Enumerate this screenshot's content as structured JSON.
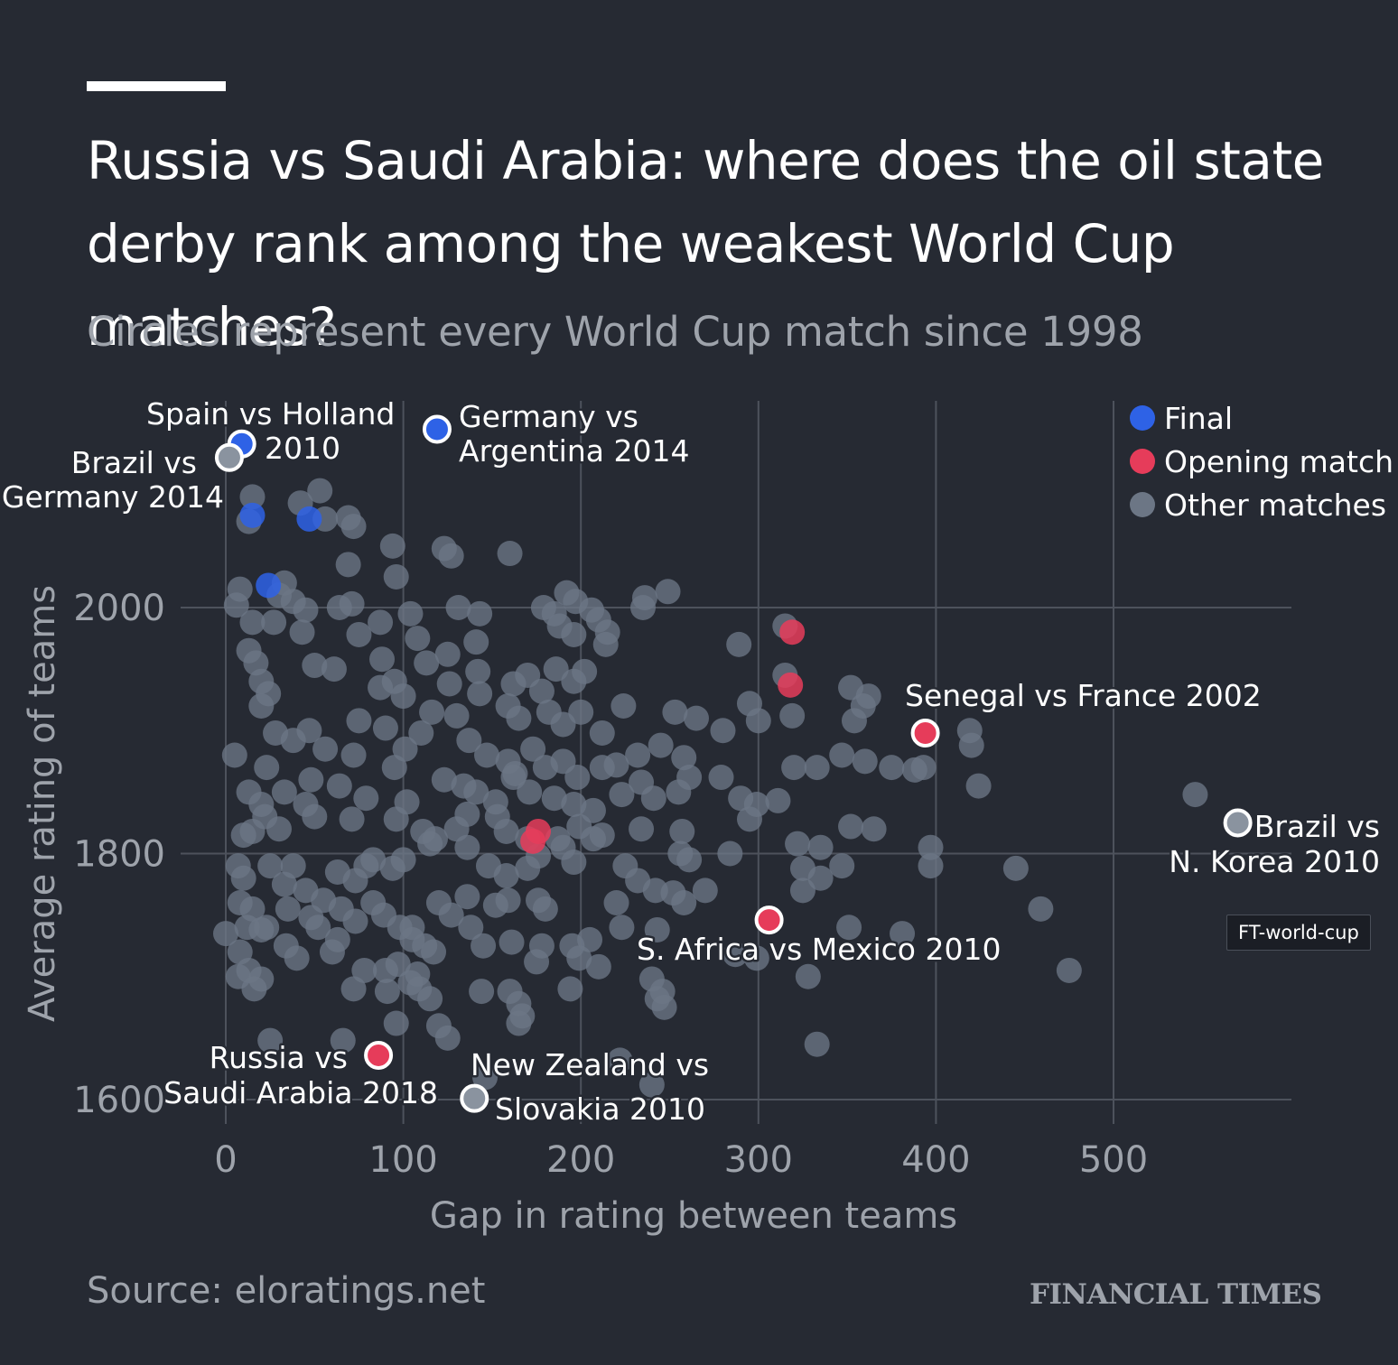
{
  "title": "Russia vs Saudi Arabia: where does the oil state derby rank among the weakest World Cup matches?",
  "subtitle": "Circles represent every World Cup match since 1998",
  "source": "Source: eloratings.net",
  "brand": "FINANCIAL TIMES",
  "tooltip": "FT-world-cup",
  "colors": {
    "background": "#262a33",
    "final": "#2e62e6",
    "opening": "#e63c5a",
    "other": "#6c7685",
    "grid": "#4d525c",
    "muted_text": "#9ea3ab"
  },
  "chart_data": {
    "type": "scatter",
    "xlabel": "Gap in rating between teams",
    "ylabel": "Average rating of teams",
    "xlim": [
      0,
      600
    ],
    "ylim": [
      1590,
      2170
    ],
    "x_ticks": [
      0,
      100,
      200,
      300,
      400,
      500
    ],
    "y_ticks": [
      1600,
      1800,
      2000
    ],
    "x_tick_labels": [
      "0",
      "100",
      "200",
      "300",
      "400",
      "500"
    ],
    "y_tick_labels": [
      "1600",
      "1800",
      "2000"
    ],
    "legend": {
      "placement": "top-right",
      "entries": [
        {
          "label": "Final",
          "category": "final"
        },
        {
          "label": "Opening match",
          "category": "opening"
        },
        {
          "label": "Other matches",
          "category": "other"
        }
      ]
    },
    "highlighted": [
      {
        "name": "Spain vs Holland 2010",
        "label_lines": [
          "Spain vs Holland",
          "2010"
        ],
        "category": "final",
        "x": 9,
        "y": 2133
      },
      {
        "name": "Brazil vs Germany 2014",
        "label_lines": [
          "Brazil vs",
          "Germany 2014"
        ],
        "category": "other",
        "x": 2,
        "y": 2122
      },
      {
        "name": "Germany vs Argentina 2014",
        "label_lines": [
          "Germany vs",
          "Argentina 2014"
        ],
        "category": "final",
        "x": 119,
        "y": 2145
      },
      {
        "name": "Senegal vs France 2002",
        "label_lines": [
          "Senegal vs France 2002"
        ],
        "category": "opening",
        "x": 394,
        "y": 1898
      },
      {
        "name": "Brazil vs N. Korea 2010",
        "label_lines": [
          "Brazil vs",
          "N. Korea 2010"
        ],
        "category": "other",
        "x": 570,
        "y": 1825
      },
      {
        "name": "S. Africa vs Mexico 2010",
        "label_lines": [
          "S. Africa vs Mexico 2010"
        ],
        "category": "opening",
        "x": 306,
        "y": 1746
      },
      {
        "name": "Russia vs Saudi Arabia 2018",
        "label_lines": [
          "Russia vs",
          "Saudi Arabia 2018"
        ],
        "category": "opening",
        "x": 86,
        "y": 1636
      },
      {
        "name": "New Zealand vs Slovakia 2010",
        "label_lines": [
          "New Zealand vs",
          "Slovakia 2010"
        ],
        "category": "other",
        "x": 140,
        "y": 1601
      }
    ],
    "finals": [
      [
        15,
        2075
      ],
      [
        47,
        2072
      ],
      [
        24,
        2018
      ]
    ],
    "openings": [
      [
        319,
        1980
      ],
      [
        318,
        1937
      ],
      [
        176,
        1818
      ],
      [
        173,
        1810
      ]
    ],
    "others": [
      [
        13,
        2070
      ],
      [
        42,
        2085
      ],
      [
        53,
        2095
      ],
      [
        56,
        2072
      ],
      [
        69,
        2073
      ],
      [
        72,
        2066
      ],
      [
        15,
        2090
      ],
      [
        94,
        2050
      ],
      [
        96,
        2025
      ],
      [
        123,
        2048
      ],
      [
        127,
        2042
      ],
      [
        160,
        2044
      ],
      [
        69,
        2035
      ],
      [
        33,
        2020
      ],
      [
        8,
        2015
      ],
      [
        6,
        2002
      ],
      [
        30,
        2010
      ],
      [
        38,
        2005
      ],
      [
        45,
        1998
      ],
      [
        64,
        2000
      ],
      [
        71,
        2003
      ],
      [
        15,
        1988
      ],
      [
        27,
        1988
      ],
      [
        43,
        1980
      ],
      [
        87,
        1988
      ],
      [
        104,
        1995
      ],
      [
        131,
        2000
      ],
      [
        143,
        1995
      ],
      [
        179,
        2000
      ],
      [
        185,
        1995
      ],
      [
        192,
        2012
      ],
      [
        197,
        2005
      ],
      [
        206,
        1998
      ],
      [
        235,
        2000
      ],
      [
        236,
        2008
      ],
      [
        249,
        2013
      ],
      [
        188,
        1985
      ],
      [
        196,
        1978
      ],
      [
        210,
        1990
      ],
      [
        215,
        1980
      ],
      [
        289,
        1970
      ],
      [
        315,
        1985
      ],
      [
        13,
        1965
      ],
      [
        17,
        1955
      ],
      [
        20,
        1940
      ],
      [
        24,
        1930
      ],
      [
        20,
        1920
      ],
      [
        50,
        1953
      ],
      [
        61,
        1950
      ],
      [
        75,
        1978
      ],
      [
        88,
        1958
      ],
      [
        108,
        1975
      ],
      [
        113,
        1955
      ],
      [
        125,
        1962
      ],
      [
        141,
        1972
      ],
      [
        142,
        1948
      ],
      [
        162,
        1938
      ],
      [
        178,
        1932
      ],
      [
        186,
        1950
      ],
      [
        196,
        1940
      ],
      [
        202,
        1948
      ],
      [
        214,
        1970
      ],
      [
        170,
        1945
      ],
      [
        143,
        1930
      ],
      [
        126,
        1938
      ],
      [
        95,
        1940
      ],
      [
        87,
        1935
      ],
      [
        100,
        1928
      ],
      [
        116,
        1915
      ],
      [
        130,
        1912
      ],
      [
        159,
        1920
      ],
      [
        165,
        1910
      ],
      [
        182,
        1915
      ],
      [
        190,
        1905
      ],
      [
        200,
        1915
      ],
      [
        212,
        1898
      ],
      [
        224,
        1920
      ],
      [
        253,
        1915
      ],
      [
        265,
        1910
      ],
      [
        295,
        1922
      ],
      [
        300,
        1908
      ],
      [
        315,
        1945
      ],
      [
        319,
        1912
      ],
      [
        352,
        1935
      ],
      [
        362,
        1928
      ],
      [
        359,
        1920
      ],
      [
        354,
        1908
      ],
      [
        419,
        1900
      ],
      [
        420,
        1888
      ],
      [
        28,
        1898
      ],
      [
        38,
        1892
      ],
      [
        47,
        1900
      ],
      [
        56,
        1885
      ],
      [
        72,
        1880
      ],
      [
        75,
        1908
      ],
      [
        90,
        1902
      ],
      [
        101,
        1885
      ],
      [
        110,
        1898
      ],
      [
        137,
        1892
      ],
      [
        147,
        1880
      ],
      [
        159,
        1875
      ],
      [
        163,
        1865
      ],
      [
        173,
        1885
      ],
      [
        180,
        1870
      ],
      [
        190,
        1875
      ],
      [
        198,
        1862
      ],
      [
        212,
        1870
      ],
      [
        220,
        1872
      ],
      [
        232,
        1880
      ],
      [
        245,
        1888
      ],
      [
        258,
        1878
      ],
      [
        280,
        1900
      ],
      [
        320,
        1870
      ],
      [
        333,
        1870
      ],
      [
        347,
        1880
      ],
      [
        360,
        1875
      ],
      [
        375,
        1870
      ],
      [
        393,
        1870
      ],
      [
        388,
        1868
      ],
      [
        424,
        1855
      ],
      [
        546,
        1848
      ],
      [
        5,
        1880
      ],
      [
        23,
        1870
      ],
      [
        33,
        1850
      ],
      [
        48,
        1860
      ],
      [
        64,
        1855
      ],
      [
        79,
        1845
      ],
      [
        95,
        1870
      ],
      [
        102,
        1842
      ],
      [
        123,
        1860
      ],
      [
        134,
        1855
      ],
      [
        141,
        1850
      ],
      [
        152,
        1842
      ],
      [
        162,
        1862
      ],
      [
        171,
        1850
      ],
      [
        185,
        1845
      ],
      [
        196,
        1840
      ],
      [
        207,
        1835
      ],
      [
        223,
        1848
      ],
      [
        234,
        1858
      ],
      [
        241,
        1845
      ],
      [
        255,
        1850
      ],
      [
        261,
        1862
      ],
      [
        279,
        1862
      ],
      [
        290,
        1845
      ],
      [
        299,
        1840
      ],
      [
        311,
        1843
      ],
      [
        13,
        1850
      ],
      [
        20,
        1840
      ],
      [
        22,
        1830
      ],
      [
        30,
        1820
      ],
      [
        10,
        1815
      ],
      [
        15,
        1818
      ],
      [
        45,
        1840
      ],
      [
        50,
        1830
      ],
      [
        71,
        1828
      ],
      [
        96,
        1828
      ],
      [
        111,
        1818
      ],
      [
        118,
        1812
      ],
      [
        130,
        1820
      ],
      [
        136,
        1832
      ],
      [
        153,
        1830
      ],
      [
        158,
        1818
      ],
      [
        170,
        1812
      ],
      [
        187,
        1812
      ],
      [
        199,
        1822
      ],
      [
        207,
        1812
      ],
      [
        212,
        1815
      ],
      [
        234,
        1820
      ],
      [
        257,
        1818
      ],
      [
        295,
        1828
      ],
      [
        352,
        1822
      ],
      [
        365,
        1820
      ],
      [
        322,
        1808
      ],
      [
        335,
        1805
      ],
      [
        397,
        1805
      ],
      [
        7,
        1790
      ],
      [
        10,
        1780
      ],
      [
        25,
        1790
      ],
      [
        33,
        1775
      ],
      [
        38,
        1790
      ],
      [
        45,
        1770
      ],
      [
        55,
        1762
      ],
      [
        63,
        1785
      ],
      [
        73,
        1778
      ],
      [
        79,
        1790
      ],
      [
        83,
        1795
      ],
      [
        94,
        1788
      ],
      [
        100,
        1795
      ],
      [
        115,
        1808
      ],
      [
        136,
        1805
      ],
      [
        148,
        1790
      ],
      [
        158,
        1782
      ],
      [
        170,
        1788
      ],
      [
        176,
        1798
      ],
      [
        190,
        1805
      ],
      [
        196,
        1793
      ],
      [
        225,
        1790
      ],
      [
        232,
        1778
      ],
      [
        256,
        1800
      ],
      [
        261,
        1795
      ],
      [
        284,
        1800
      ],
      [
        325,
        1788
      ],
      [
        335,
        1780
      ],
      [
        347,
        1790
      ],
      [
        397,
        1790
      ],
      [
        445,
        1788
      ],
      [
        8,
        1760
      ],
      [
        15,
        1755
      ],
      [
        23,
        1740
      ],
      [
        35,
        1755
      ],
      [
        48,
        1748
      ],
      [
        65,
        1755
      ],
      [
        73,
        1745
      ],
      [
        83,
        1760
      ],
      [
        89,
        1750
      ],
      [
        105,
        1740
      ],
      [
        120,
        1760
      ],
      [
        127,
        1750
      ],
      [
        136,
        1765
      ],
      [
        152,
        1758
      ],
      [
        159,
        1762
      ],
      [
        176,
        1762
      ],
      [
        180,
        1755
      ],
      [
        220,
        1760
      ],
      [
        242,
        1770
      ],
      [
        252,
        1768
      ],
      [
        258,
        1760
      ],
      [
        270,
        1770
      ],
      [
        325,
        1770
      ],
      [
        459,
        1755
      ],
      [
        0,
        1735
      ],
      [
        12,
        1740
      ],
      [
        20,
        1738
      ],
      [
        34,
        1725
      ],
      [
        52,
        1740
      ],
      [
        63,
        1730
      ],
      [
        98,
        1740
      ],
      [
        105,
        1730
      ],
      [
        112,
        1725
      ],
      [
        138,
        1740
      ],
      [
        161,
        1728
      ],
      [
        178,
        1725
      ],
      [
        195,
        1725
      ],
      [
        205,
        1730
      ],
      [
        223,
        1740
      ],
      [
        243,
        1738
      ],
      [
        351,
        1740
      ],
      [
        381,
        1735
      ],
      [
        8,
        1720
      ],
      [
        13,
        1705
      ],
      [
        20,
        1698
      ],
      [
        40,
        1715
      ],
      [
        60,
        1720
      ],
      [
        78,
        1705
      ],
      [
        90,
        1705
      ],
      [
        97,
        1710
      ],
      [
        108,
        1702
      ],
      [
        117,
        1720
      ],
      [
        145,
        1725
      ],
      [
        175,
        1712
      ],
      [
        199,
        1715
      ],
      [
        210,
        1708
      ],
      [
        240,
        1698
      ],
      [
        246,
        1688
      ],
      [
        287,
        1718
      ],
      [
        299,
        1715
      ],
      [
        328,
        1700
      ],
      [
        475,
        1705
      ],
      [
        7,
        1700
      ],
      [
        16,
        1690
      ],
      [
        72,
        1690
      ],
      [
        91,
        1688
      ],
      [
        104,
        1695
      ],
      [
        109,
        1690
      ],
      [
        115,
        1682
      ],
      [
        144,
        1688
      ],
      [
        160,
        1688
      ],
      [
        194,
        1690
      ],
      [
        243,
        1682
      ],
      [
        247,
        1675
      ],
      [
        96,
        1662
      ],
      [
        120,
        1660
      ],
      [
        125,
        1650
      ],
      [
        165,
        1662
      ],
      [
        167,
        1668
      ],
      [
        165,
        1678
      ],
      [
        25,
        1648
      ],
      [
        66,
        1648
      ],
      [
        333,
        1645
      ],
      [
        222,
        1632
      ],
      [
        240,
        1612
      ],
      [
        146,
        1618
      ]
    ]
  },
  "labels": {
    "spain_holland": [
      "Spain vs Holland",
      "2010"
    ],
    "brazil_germany": [
      "Brazil vs",
      "Germany 2014"
    ],
    "germany_argentina": [
      "Germany vs",
      "Argentina 2014"
    ],
    "senegal_france": "Senegal vs France 2002",
    "brazil_nkorea": [
      "Brazil vs",
      "N. Korea 2010"
    ],
    "safrica_mexico": "S. Africa vs Mexico 2010",
    "russia_saudi": [
      "Russia vs",
      "Saudi Arabia 2018"
    ],
    "nz_slovakia": [
      "New Zealand vs",
      "Slovakia 2010"
    ]
  }
}
